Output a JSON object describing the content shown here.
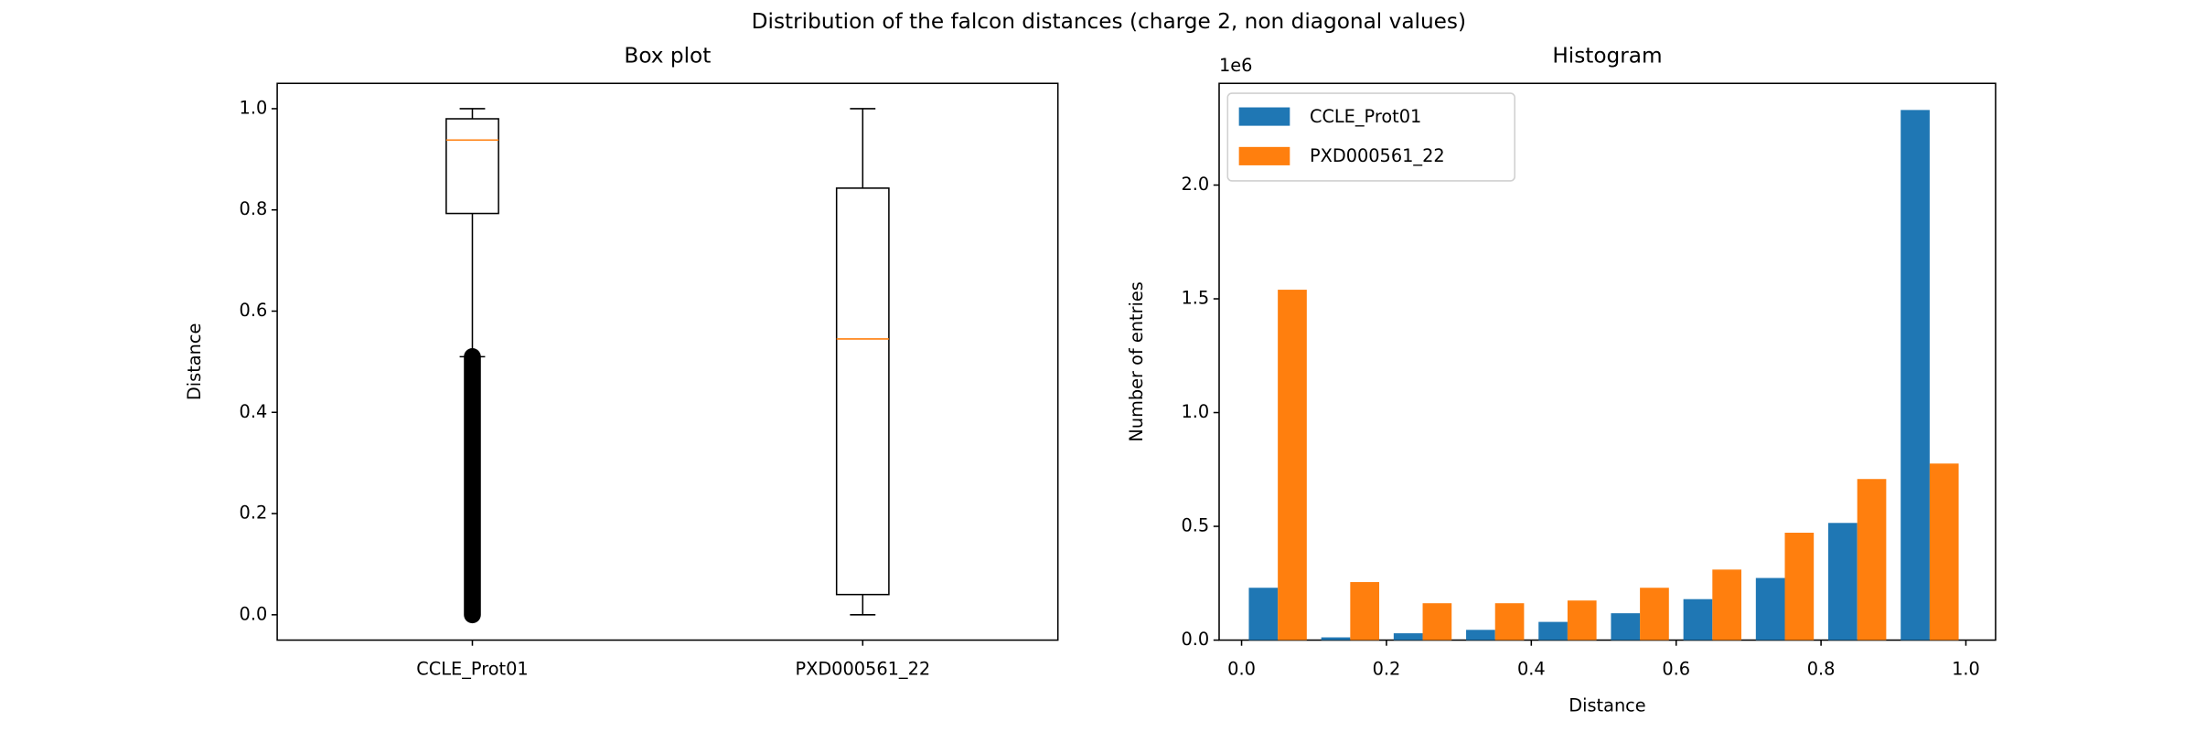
{
  "title": "Distribution of the falcon distances (charge 2, non diagonal values)",
  "chart_data": [
    {
      "type": "box",
      "title": "Box plot",
      "ylabel": "Distance",
      "categories": [
        "CCLE_Prot01",
        "PXD000561_22"
      ],
      "boxes": [
        {
          "whislo": 0.51,
          "q1": 0.793,
          "med": 0.938,
          "q3": 0.98,
          "whishi": 1.0,
          "fliers": [
            0,
            0.51
          ]
        },
        {
          "whislo": 0,
          "q1": 0.04,
          "med": 0.545,
          "q3": 0.843,
          "whishi": 1.0,
          "fliers": []
        }
      ],
      "xlim": [
        0.5,
        2.5
      ],
      "xticks": [
        1,
        2
      ],
      "ylim": [
        -0.05,
        1.05
      ],
      "yticks": [
        {
          "value": 0,
          "label": "0.0"
        },
        {
          "value": 0.2,
          "label": "0.2"
        },
        {
          "value": 0.4,
          "label": "0.4"
        },
        {
          "value": 0.6,
          "label": "0.6"
        },
        {
          "value": 0.8,
          "label": "0.8"
        },
        {
          "value": 1.0,
          "label": "1.0"
        }
      ],
      "box_color": "#000000",
      "median_color": "#ff7f0e"
    },
    {
      "type": "histogram",
      "title": "Histogram",
      "xlabel": "Distance",
      "ylabel": "Number of entries",
      "y_offset_label": "1e6",
      "bins": [
        0,
        0.1,
        0.2,
        0.3,
        0.4,
        0.5,
        0.6,
        0.7,
        0.8,
        0.9,
        1.0
      ],
      "series": [
        {
          "name": "CCLE_Prot01",
          "color": "#1f77b4",
          "values": [
            230000,
            12000,
            30000,
            45000,
            80000,
            118000,
            180000,
            273000,
            515000,
            2330000
          ]
        },
        {
          "name": "PXD000561_22",
          "color": "#ff7f0e",
          "values": [
            1540000,
            255000,
            162000,
            162000,
            174000,
            230000,
            310000,
            472000,
            708000,
            776000
          ]
        }
      ],
      "xlim": [
        -0.031,
        1.041
      ],
      "xticks": [
        {
          "value": 0,
          "label": "0.0"
        },
        {
          "value": 0.2,
          "label": "0.2"
        },
        {
          "value": 0.4,
          "label": "0.4"
        },
        {
          "value": 0.6,
          "label": "0.6"
        },
        {
          "value": 0.8,
          "label": "0.8"
        },
        {
          "value": 1.0,
          "label": "1.0"
        }
      ],
      "ylim": [
        0,
        2447000
      ],
      "yticks": [
        {
          "value": 0,
          "label": "0.0"
        },
        {
          "value": 500000,
          "label": "0.5"
        },
        {
          "value": 1000000,
          "label": "1.0"
        },
        {
          "value": 1500000,
          "label": "1.5"
        },
        {
          "value": 2000000,
          "label": "2.0"
        }
      ],
      "legend": "upper left"
    }
  ]
}
